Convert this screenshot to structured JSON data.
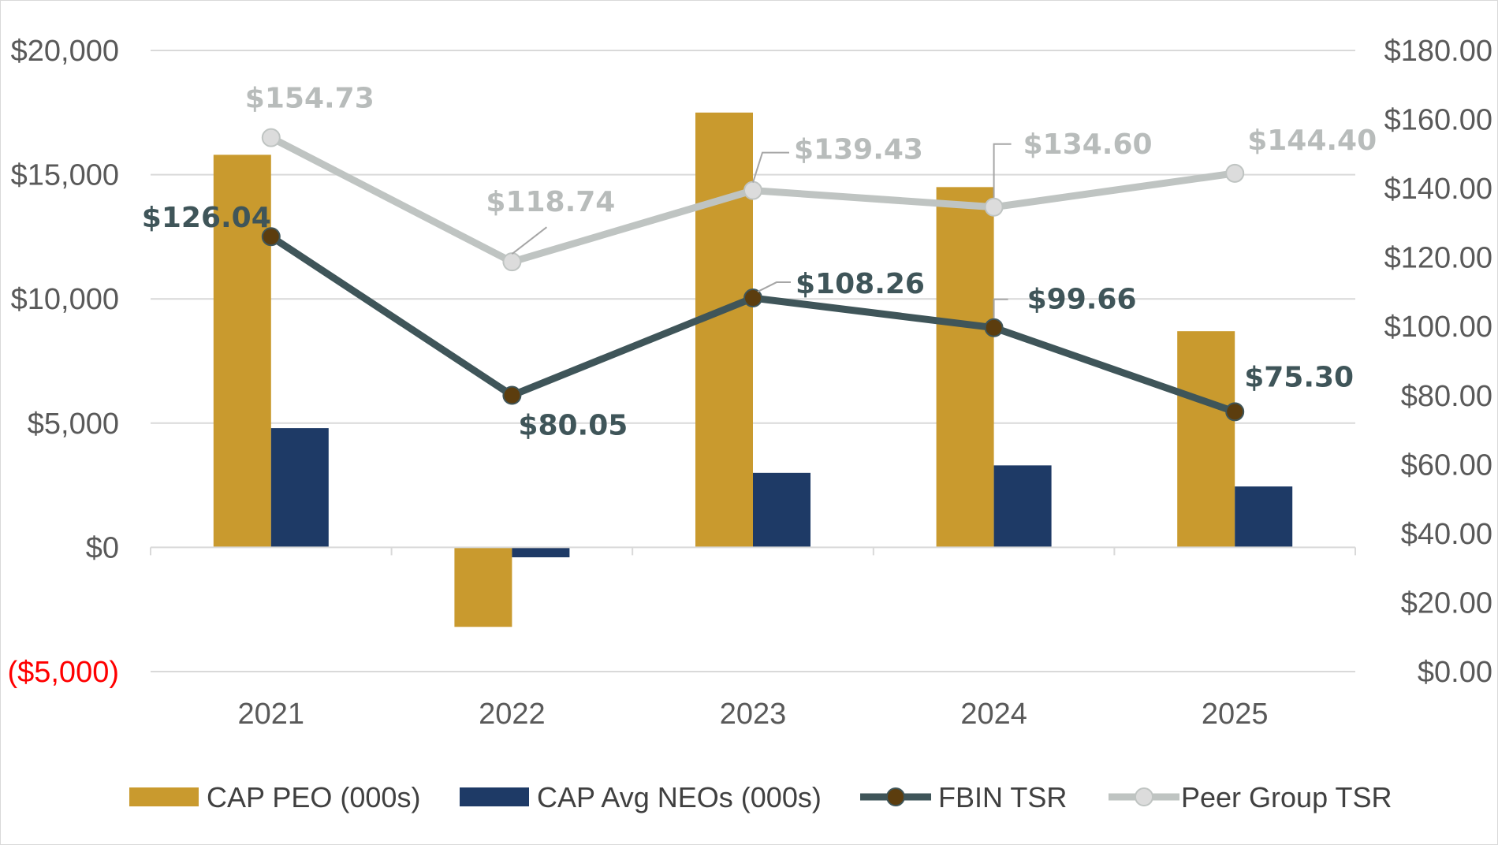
{
  "chart_data": {
    "type": "bar-line-combo",
    "categories": [
      "2021",
      "2022",
      "2023",
      "2024",
      "2025"
    ],
    "left_axis": {
      "ylim": [
        -5000,
        20000
      ],
      "ticks": [
        -5000,
        0,
        5000,
        10000,
        15000,
        20000
      ],
      "tick_labels": [
        "($5,000)",
        "$0",
        "$5,000",
        "$10,000",
        "$15,000",
        "$20,000"
      ],
      "negative_label_color": "#ff0000"
    },
    "right_axis": {
      "ylim": [
        0,
        180
      ],
      "ticks": [
        0,
        20,
        40,
        60,
        80,
        100,
        120,
        140,
        160,
        180
      ],
      "tick_labels": [
        "$0.00",
        "$20.00",
        "$40.00",
        "$60.00",
        "$80.00",
        "$100.00",
        "$120.00",
        "$140.00",
        "$160.00",
        "$180.00"
      ]
    },
    "bar_series": [
      {
        "name": "CAP PEO (000s)",
        "color": "#c99a2e",
        "values": [
          15800,
          -3200,
          17500,
          14500,
          8700
        ]
      },
      {
        "name": "CAP Avg NEOs (000s)",
        "color": "#1e3a66",
        "values": [
          4800,
          -400,
          3000,
          3300,
          2450
        ]
      }
    ],
    "line_series": [
      {
        "name": "FBIN TSR",
        "line_color": "#3f5559",
        "marker_color": "#5c3d0e",
        "values": [
          126.04,
          80.05,
          108.26,
          99.66,
          75.3
        ],
        "labels": [
          "$126.04",
          "$80.05",
          "$108.26",
          "$99.66",
          "$75.30"
        ]
      },
      {
        "name": "Peer Group TSR",
        "line_color": "#bfc4c2",
        "marker_color": "#dcdcdc",
        "values": [
          154.73,
          118.74,
          139.43,
          134.6,
          144.4
        ],
        "labels": [
          "$154.73",
          "$118.74",
          "$139.43",
          "$134.60",
          "$144.40"
        ]
      }
    ],
    "legend": [
      "CAP PEO (000s)",
      "CAP Avg NEOs (000s)",
      "FBIN TSR",
      "Peer Group TSR"
    ],
    "legend_position": "bottom",
    "grid": true
  }
}
